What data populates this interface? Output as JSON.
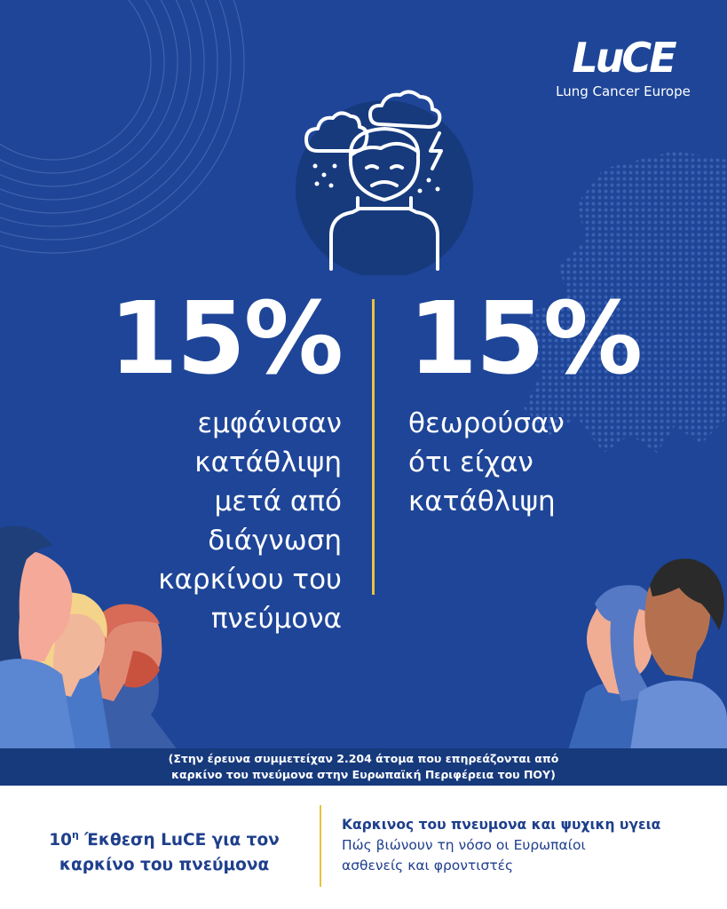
{
  "logo": {
    "mark": "LuCE",
    "name": "Lung Cancer Europe"
  },
  "icons": {
    "main": "depressed-person-under-storm-cloud-icon",
    "logo": "luce-logo"
  },
  "colors": {
    "background": "#1e4598",
    "accent": "#e9c33a",
    "footnote_band": "#173a7d",
    "text_dark": "#1e3f8c"
  },
  "stats": [
    {
      "value": "15%",
      "lines": [
        "εμφάνισαν",
        "κατάθλιψη",
        "μετά από",
        "διάγνωση",
        "καρκίνου του",
        "πνεύμονα"
      ]
    },
    {
      "value": "15%",
      "lines": [
        "θεωρούσαν",
        "ότι είχαν",
        "κατάθλιψη"
      ]
    }
  ],
  "footnote": {
    "line1": "(Στην έρευνα συμμετείχαν 2.204 άτομα που επηρεάζονται από",
    "line2": "καρκίνο του πνεύμονα στην Ευρωπαϊκή Περιφέρεια του ΠΟΥ)"
  },
  "report": {
    "number": "10",
    "sup": "η",
    "line1_rest": " Έκθεση LuCE για τον",
    "line2": "καρκίνο του πνεύμονα"
  },
  "subtitle": {
    "title": "Καρκινος του πνευμονα και ψυχικη υγεια",
    "line1": "Πώς βιώνουν τη νόσο οι Ευρωπαίοι",
    "line2": "ασθενείς και φροντιστές"
  }
}
